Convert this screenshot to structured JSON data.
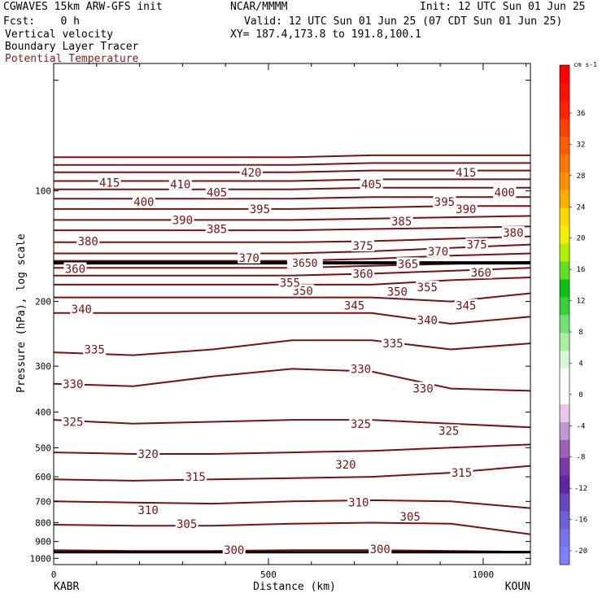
{
  "header": {
    "model": "CGWAVES 15km ARW-GFS init",
    "org": "NCAR/MMMM",
    "init": "Init: 12 UTC Sun 01 Jun 25",
    "fcst": "Fcst:    0 h",
    "valid": "Valid: 12 UTC Sun 01 Jun 25 (07 CDT Sun 01 Jun 25)",
    "field1": "Vertical velocity",
    "xy": "XY= 187.4,173.8 to 191.8,100.1",
    "field2": "Boundary Layer Tracer",
    "field3": "Potential Temperature"
  },
  "colors": {
    "theta": "#7a1010",
    "field3_text": "#8b1a1a",
    "tropo": "#000000"
  },
  "chart_data": {
    "type": "line",
    "title": "",
    "xlabel": "Distance (km)",
    "ylabel": "Pressure (hPa), log scale",
    "xlim": [
      0,
      1110
    ],
    "ylim": [
      1040,
      45
    ],
    "y_scale": "log",
    "x_ticks": [
      0,
      500,
      1000
    ],
    "x_tick_labels": [
      "0",
      "500",
      "1000"
    ],
    "y_ticks": [
      100,
      200,
      300,
      400,
      500,
      600,
      700,
      800,
      900,
      1000
    ],
    "y_tick_labels": [
      "100",
      "200",
      "300",
      "400",
      "500",
      "600",
      "700",
      "800",
      "900",
      "1000"
    ],
    "endpoint_left": "KABR",
    "endpoint_right": "KOUN",
    "x": [
      0,
      185,
      370,
      555,
      740,
      925,
      1110
    ],
    "series": [
      {
        "theta": 300,
        "p": [
          950,
          955,
          955,
          950,
          950,
          955,
          960
        ]
      },
      {
        "theta": 305,
        "p": [
          810,
          815,
          815,
          805,
          800,
          805,
          860
        ]
      },
      {
        "theta": 310,
        "p": [
          700,
          705,
          710,
          700,
          695,
          700,
          730
        ]
      },
      {
        "theta": 315,
        "p": [
          610,
          615,
          610,
          605,
          600,
          585,
          560
        ]
      },
      {
        "theta": 320,
        "p": [
          515,
          520,
          520,
          515,
          510,
          500,
          490
        ]
      },
      {
        "theta": 325,
        "p": [
          420,
          430,
          425,
          420,
          420,
          430,
          440
        ]
      },
      {
        "theta": 330,
        "p": [
          335,
          340,
          320,
          305,
          310,
          345,
          350
        ]
      },
      {
        "theta": 335,
        "p": [
          275,
          280,
          270,
          255,
          255,
          270,
          260
        ]
      },
      {
        "theta": 340,
        "p": [
          215,
          215,
          215,
          215,
          215,
          230,
          220
        ]
      },
      {
        "theta": 345,
        "p": [
          195,
          195,
          195,
          195,
          195,
          200,
          190
        ]
      },
      {
        "theta": 350,
        "p": [
          180,
          180,
          180,
          180,
          180,
          175,
          172
        ]
      },
      {
        "theta": 355,
        "p": [
          170,
          170,
          170,
          170,
          168,
          165,
          162
        ]
      },
      {
        "theta": 360,
        "p": [
          162,
          162,
          162,
          162,
          160,
          158,
          156
        ]
      },
      {
        "theta": 365,
        "p": [
          155,
          155,
          155,
          155,
          153,
          150,
          148
        ]
      },
      {
        "theta": 370,
        "p": [
          148,
          148,
          148,
          148,
          146,
          143,
          140
        ]
      },
      {
        "theta": 375,
        "p": [
          138,
          138,
          138,
          138,
          137,
          135,
          133
        ]
      },
      {
        "theta": 380,
        "p": [
          128,
          128,
          128,
          128,
          127,
          126,
          125
        ]
      },
      {
        "theta": 385,
        "p": [
          120,
          120,
          120,
          120,
          119,
          118,
          117
        ]
      },
      {
        "theta": 390,
        "p": [
          112,
          112,
          112,
          112,
          111,
          110,
          110
        ]
      },
      {
        "theta": 395,
        "p": [
          105,
          105,
          105,
          105,
          104,
          104,
          104
        ]
      },
      {
        "theta": 400,
        "p": [
          99,
          99,
          99,
          99,
          98,
          98,
          98
        ]
      },
      {
        "theta": 405,
        "p": [
          94,
          94,
          94,
          94,
          93,
          93,
          93
        ]
      },
      {
        "theta": 410,
        "p": [
          89,
          89,
          89,
          89,
          88,
          88,
          88
        ]
      },
      {
        "theta": 415,
        "p": [
          85,
          85,
          85,
          85,
          84,
          84,
          84
        ]
      },
      {
        "theta": 420,
        "p": [
          81,
          81,
          81,
          81,
          80,
          80,
          80
        ]
      }
    ],
    "contour_labels": [
      {
        "text": "300",
        "x": 420,
        "p": 950
      },
      {
        "text": "300",
        "x": 760,
        "p": 945
      },
      {
        "text": "305",
        "x": 310,
        "p": 805
      },
      {
        "text": "305",
        "x": 830,
        "p": 770
      },
      {
        "text": "310",
        "x": 220,
        "p": 740
      },
      {
        "text": "310",
        "x": 710,
        "p": 705
      },
      {
        "text": "315",
        "x": 330,
        "p": 600
      },
      {
        "text": "315",
        "x": 950,
        "p": 585
      },
      {
        "text": "320",
        "x": 220,
        "p": 520
      },
      {
        "text": "320",
        "x": 680,
        "p": 555
      },
      {
        "text": "325",
        "x": 45,
        "p": 425
      },
      {
        "text": "325",
        "x": 715,
        "p": 430
      },
      {
        "text": "325",
        "x": 920,
        "p": 450
      },
      {
        "text": "330",
        "x": 45,
        "p": 335
      },
      {
        "text": "330",
        "x": 715,
        "p": 305
      },
      {
        "text": "330",
        "x": 860,
        "p": 345
      },
      {
        "text": "335",
        "x": 95,
        "p": 270
      },
      {
        "text": "335",
        "x": 790,
        "p": 260
      },
      {
        "text": "340",
        "x": 65,
        "p": 210
      },
      {
        "text": "340",
        "x": 870,
        "p": 225
      },
      {
        "text": "345",
        "x": 700,
        "p": 205
      },
      {
        "text": "345",
        "x": 960,
        "p": 205
      },
      {
        "text": "350",
        "x": 580,
        "p": 187
      },
      {
        "text": "350",
        "x": 800,
        "p": 188
      },
      {
        "text": "355",
        "x": 550,
        "p": 178
      },
      {
        "text": "355",
        "x": 870,
        "p": 183
      },
      {
        "text": "360",
        "x": 50,
        "p": 163
      },
      {
        "text": "360",
        "x": 720,
        "p": 168
      },
      {
        "text": "360",
        "x": 995,
        "p": 167
      },
      {
        "text": "365",
        "x": 825,
        "p": 158
      },
      {
        "text": "370",
        "x": 455,
        "p": 152
      },
      {
        "text": "370",
        "x": 895,
        "p": 146
      },
      {
        "text": "375",
        "x": 720,
        "p": 141
      },
      {
        "text": "375",
        "x": 985,
        "p": 140
      },
      {
        "text": "380",
        "x": 80,
        "p": 137
      },
      {
        "text": "380",
        "x": 1070,
        "p": 130
      },
      {
        "text": "385",
        "x": 380,
        "p": 127
      },
      {
        "text": "385",
        "x": 810,
        "p": 121
      },
      {
        "text": "390",
        "x": 300,
        "p": 120
      },
      {
        "text": "390",
        "x": 960,
        "p": 112
      },
      {
        "text": "395",
        "x": 480,
        "p": 112
      },
      {
        "text": "395",
        "x": 910,
        "p": 107
      },
      {
        "text": "400",
        "x": 210,
        "p": 107
      },
      {
        "text": "400",
        "x": 1050,
        "p": 101
      },
      {
        "text": "405",
        "x": 380,
        "p": 101
      },
      {
        "text": "405",
        "x": 740,
        "p": 96
      },
      {
        "text": "410",
        "x": 295,
        "p": 96
      },
      {
        "text": "415",
        "x": 130,
        "p": 95
      },
      {
        "text": "415",
        "x": 960,
        "p": 89
      },
      {
        "text": "420",
        "x": 460,
        "p": 89
      }
    ],
    "tropopause_label": "3650",
    "colorbar": {
      "units": "cm s-1",
      "levels": [
        "-20",
        "-16",
        "-12",
        "-8",
        "-4",
        "0",
        "4",
        "8",
        "12",
        "16",
        "20",
        "24",
        "28",
        "32",
        "36"
      ],
      "colors": [
        "#7f7fff",
        "#7a72ee",
        "#7060d8",
        "#6848c0",
        "#6028a0",
        "#7a3aa8",
        "#9c60b8",
        "#c098d0",
        "#e8c8e8",
        "#ffffff",
        "#ffffff",
        "#d8f8d8",
        "#a8f0a0",
        "#70e070",
        "#38d038",
        "#10c010",
        "#60e020",
        "#b0f000",
        "#f0f000",
        "#ffd800",
        "#ffb000",
        "#ff9000",
        "#ff7800",
        "#ff5c00",
        "#ff4000",
        "#ff2400",
        "#ff1000",
        "#ff0000"
      ]
    }
  }
}
